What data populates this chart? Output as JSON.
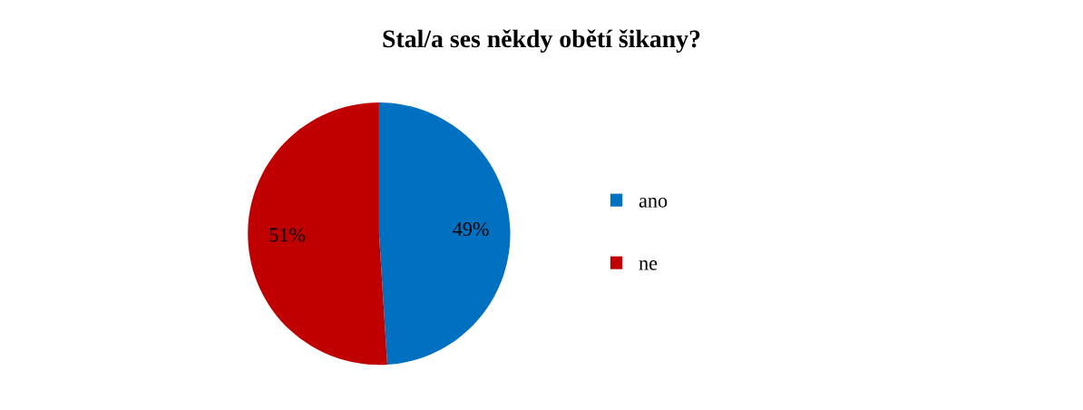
{
  "chart_data": {
    "type": "pie",
    "title": "Stal/a ses někdy obětí šikany?",
    "categories": [
      "ano",
      "ne"
    ],
    "values": [
      49,
      51
    ],
    "colors": [
      "#0070c0",
      "#c00000"
    ],
    "value_labels": [
      "49%",
      "51%"
    ],
    "legend": "right"
  }
}
